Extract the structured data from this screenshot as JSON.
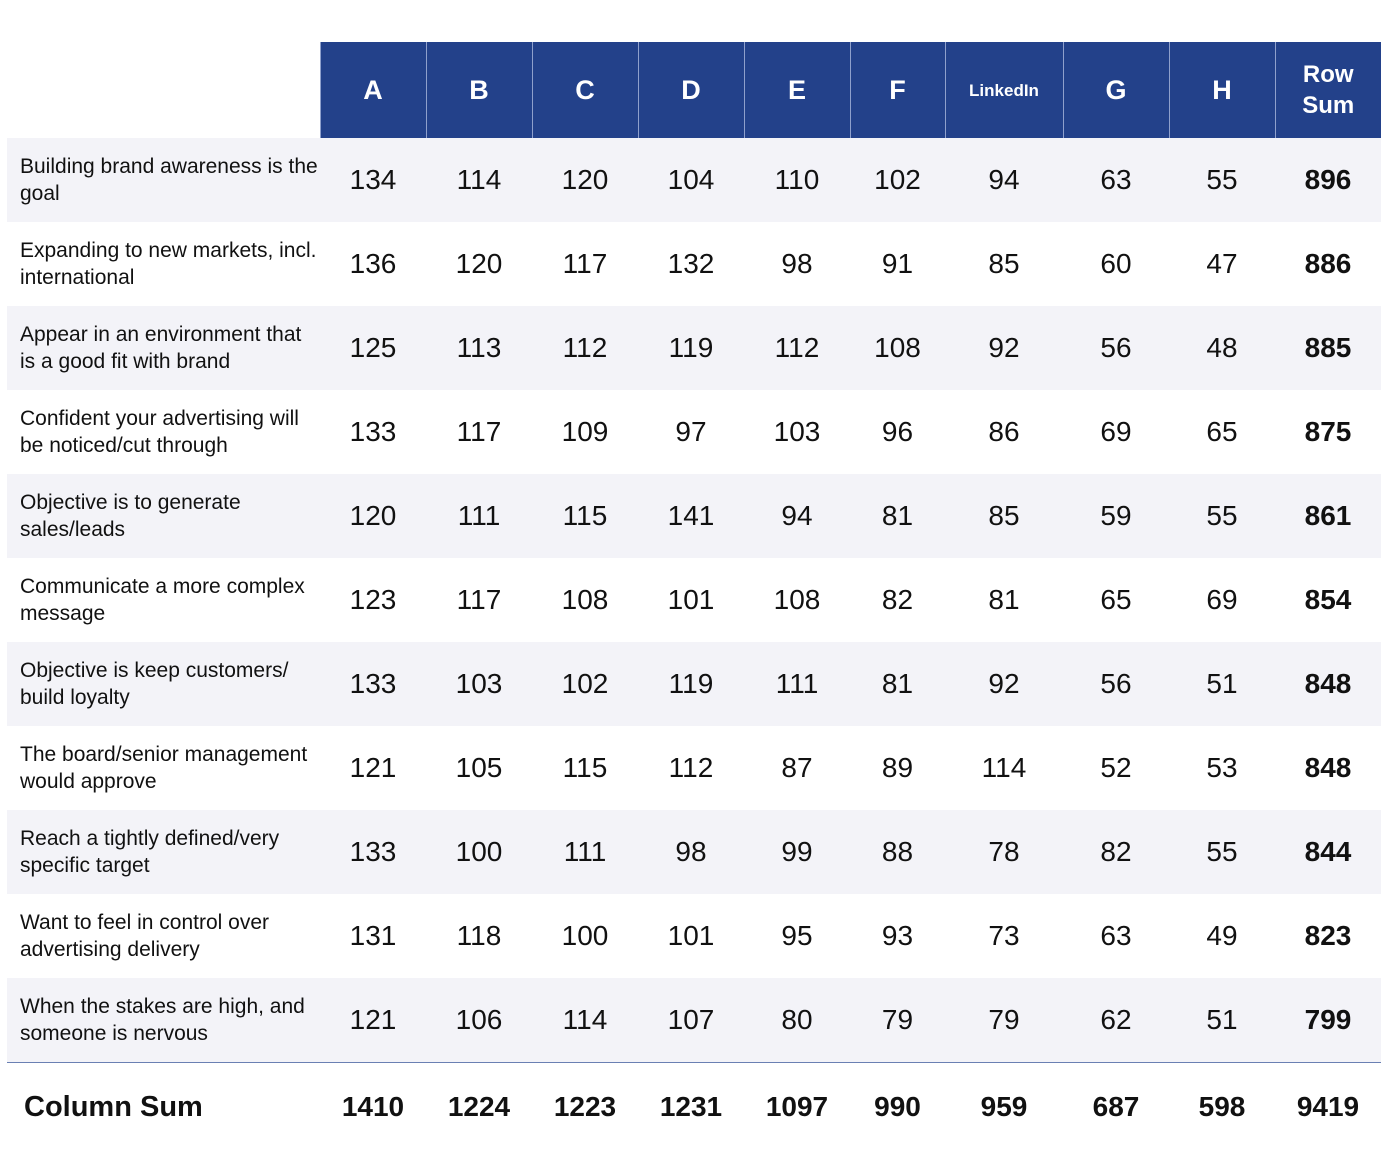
{
  "chart_data": {
    "type": "table",
    "corner": "",
    "columns": [
      "A",
      "B",
      "C",
      "D",
      "E",
      "F",
      "LinkedIn",
      "G",
      "H",
      "Row Sum"
    ],
    "rows": [
      {
        "label": "Building brand awareness is the goal",
        "values": [
          134,
          114,
          120,
          104,
          110,
          102,
          94,
          63,
          55
        ],
        "sum": 896
      },
      {
        "label": "Expanding to new markets, incl. international",
        "values": [
          136,
          120,
          117,
          132,
          98,
          91,
          85,
          60,
          47
        ],
        "sum": 886
      },
      {
        "label": "Appear in an environment that is a good fit with brand",
        "values": [
          125,
          113,
          112,
          119,
          112,
          108,
          92,
          56,
          48
        ],
        "sum": 885
      },
      {
        "label": "Confident your advertising will be noticed/cut through",
        "values": [
          133,
          117,
          109,
          97,
          103,
          96,
          86,
          69,
          65
        ],
        "sum": 875
      },
      {
        "label": "Objective is to generate sales/leads",
        "values": [
          120,
          111,
          115,
          141,
          94,
          81,
          85,
          59,
          55
        ],
        "sum": 861
      },
      {
        "label": "Communicate a more complex message",
        "values": [
          123,
          117,
          108,
          101,
          108,
          82,
          81,
          65,
          69
        ],
        "sum": 854
      },
      {
        "label": "Objective is keep customers/ build loyalty",
        "values": [
          133,
          103,
          102,
          119,
          111,
          81,
          92,
          56,
          51
        ],
        "sum": 848
      },
      {
        "label": "The board/senior management would approve",
        "values": [
          121,
          105,
          115,
          112,
          87,
          89,
          114,
          52,
          53
        ],
        "sum": 848
      },
      {
        "label": "Reach a tightly defined/very specific target",
        "values": [
          133,
          100,
          111,
          98,
          99,
          88,
          78,
          82,
          55
        ],
        "sum": 844
      },
      {
        "label": "Want to feel in control over advertising delivery",
        "values": [
          131,
          118,
          100,
          101,
          95,
          93,
          73,
          63,
          49
        ],
        "sum": 823
      },
      {
        "label": "When the stakes are high, and someone is nervous",
        "values": [
          121,
          106,
          114,
          107,
          80,
          79,
          79,
          62,
          51
        ],
        "sum": 799
      }
    ],
    "column_sum": {
      "label": "Column Sum",
      "values": [
        1410,
        1224,
        1223,
        1231,
        1097,
        990,
        959,
        687,
        598
      ],
      "total": 9419
    },
    "colors": {
      "header": "#23418a",
      "shaded_row": "#f3f3f8"
    }
  }
}
